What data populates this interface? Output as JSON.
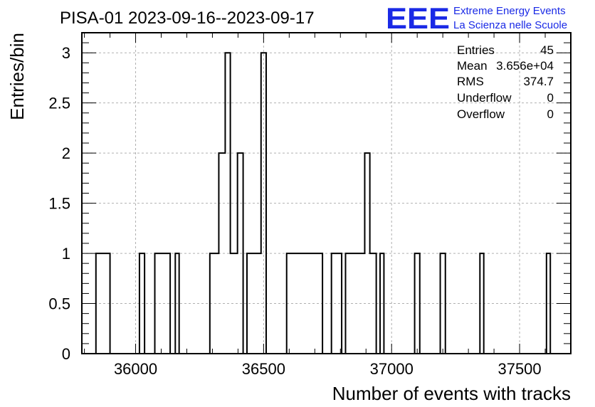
{
  "chart_data": {
    "type": "histogram",
    "title": "PISA-01 2023-09-16--2023-09-17",
    "xlabel": "Number of events with tracks",
    "ylabel": "Entries/bin",
    "xlim": [
      35790,
      37700
    ],
    "ylim": [
      0,
      3.2
    ],
    "bin_width": 15,
    "x_ticks": [
      36000,
      36500,
      37000,
      37500
    ],
    "y_ticks": [
      0,
      0.5,
      1,
      1.5,
      2,
      2.5,
      3
    ],
    "x_tick_labels": [
      "36000",
      "36500",
      "37000",
      "37500"
    ],
    "y_tick_labels": [
      "0",
      "0.5",
      "1",
      "1.5",
      "2",
      "2.5",
      "3"
    ],
    "grid": true,
    "color": "#000000",
    "bins": [
      {
        "x0": 35845,
        "x1": 35900,
        "value": 1
      },
      {
        "x0": 36015,
        "x1": 36035,
        "value": 1
      },
      {
        "x0": 36075,
        "x1": 36135,
        "value": 1
      },
      {
        "x0": 36155,
        "x1": 36170,
        "value": 1
      },
      {
        "x0": 36290,
        "x1": 36325,
        "value": 1
      },
      {
        "x0": 36325,
        "x1": 36350,
        "value": 2
      },
      {
        "x0": 36350,
        "x1": 36370,
        "value": 3
      },
      {
        "x0": 36370,
        "x1": 36387,
        "value": 1
      },
      {
        "x0": 36387,
        "x1": 36398,
        "value": 1
      },
      {
        "x0": 36398,
        "x1": 36420,
        "value": 2
      },
      {
        "x0": 36435,
        "x1": 36490,
        "value": 1
      },
      {
        "x0": 36490,
        "x1": 36510,
        "value": 3
      },
      {
        "x0": 36590,
        "x1": 36730,
        "value": 1
      },
      {
        "x0": 36765,
        "x1": 36805,
        "value": 1
      },
      {
        "x0": 36820,
        "x1": 36895,
        "value": 1
      },
      {
        "x0": 36895,
        "x1": 36915,
        "value": 2
      },
      {
        "x0": 36915,
        "x1": 36940,
        "value": 1
      },
      {
        "x0": 36955,
        "x1": 36970,
        "value": 1
      },
      {
        "x0": 37090,
        "x1": 37110,
        "value": 1
      },
      {
        "x0": 37190,
        "x1": 37210,
        "value": 1
      },
      {
        "x0": 37345,
        "x1": 37360,
        "value": 1
      },
      {
        "x0": 37605,
        "x1": 37620,
        "value": 1
      }
    ]
  },
  "stats": {
    "entries_label": "Entries",
    "entries_value": "45",
    "mean_label": "Mean",
    "mean_value": "3.656e+04",
    "rms_label": "RMS",
    "rms_value": "374.7",
    "underflow_label": "Underflow",
    "underflow_value": "0",
    "overflow_label": "Overflow",
    "overflow_value": "0"
  },
  "logo": {
    "mark": "EEE",
    "line1": "Extreme Energy Events",
    "line2": "La Scienza nelle Scuole",
    "color": "#1a2ae6"
  }
}
